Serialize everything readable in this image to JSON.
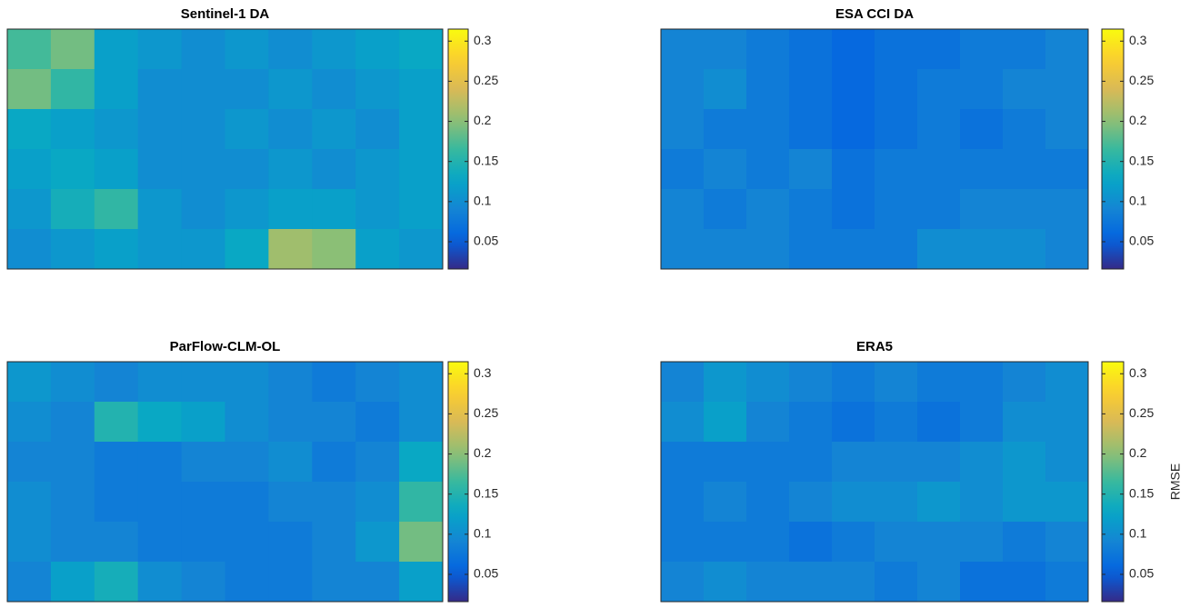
{
  "chart_data": [
    {
      "type": "heatmap",
      "title": "Sentinel-1 DA",
      "colormap": "parula",
      "clim": [
        0.016,
        0.315
      ],
      "cticks": [
        0.05,
        0.1,
        0.15,
        0.2,
        0.25,
        0.3
      ],
      "values": [
        [
          0.17,
          0.19,
          0.12,
          0.11,
          0.1,
          0.11,
          0.1,
          0.11,
          0.12,
          0.13
        ],
        [
          0.19,
          0.16,
          0.12,
          0.1,
          0.1,
          0.1,
          0.11,
          0.1,
          0.11,
          0.12
        ],
        [
          0.13,
          0.12,
          0.11,
          0.1,
          0.1,
          0.11,
          0.1,
          0.11,
          0.1,
          0.12
        ],
        [
          0.12,
          0.13,
          0.12,
          0.1,
          0.1,
          0.1,
          0.11,
          0.1,
          0.11,
          0.12
        ],
        [
          0.11,
          0.14,
          0.16,
          0.11,
          0.1,
          0.11,
          0.12,
          0.12,
          0.11,
          0.12
        ],
        [
          0.1,
          0.11,
          0.12,
          0.11,
          0.11,
          0.13,
          0.21,
          0.2,
          0.12,
          0.11
        ]
      ]
    },
    {
      "type": "heatmap",
      "title": "ESA CCI DA",
      "colormap": "parula",
      "clim": [
        0.016,
        0.315
      ],
      "cticks": [
        0.05,
        0.1,
        0.15,
        0.2,
        0.25,
        0.3
      ],
      "values": [
        [
          0.09,
          0.09,
          0.08,
          0.07,
          0.06,
          0.07,
          0.07,
          0.08,
          0.08,
          0.09
        ],
        [
          0.09,
          0.1,
          0.08,
          0.07,
          0.06,
          0.07,
          0.08,
          0.08,
          0.09,
          0.09
        ],
        [
          0.09,
          0.08,
          0.08,
          0.07,
          0.06,
          0.07,
          0.08,
          0.07,
          0.08,
          0.09
        ],
        [
          0.08,
          0.09,
          0.08,
          0.09,
          0.07,
          0.08,
          0.08,
          0.08,
          0.08,
          0.08
        ],
        [
          0.09,
          0.08,
          0.09,
          0.08,
          0.07,
          0.08,
          0.08,
          0.09,
          0.09,
          0.09
        ],
        [
          0.09,
          0.09,
          0.09,
          0.08,
          0.08,
          0.08,
          0.1,
          0.1,
          0.1,
          0.09
        ]
      ]
    },
    {
      "type": "heatmap",
      "title": "ParFlow-CLM-OL",
      "colormap": "parula",
      "clim": [
        0.016,
        0.315
      ],
      "cticks": [
        0.05,
        0.1,
        0.15,
        0.2,
        0.25,
        0.3
      ],
      "values": [
        [
          0.11,
          0.1,
          0.09,
          0.1,
          0.1,
          0.1,
          0.09,
          0.08,
          0.09,
          0.1
        ],
        [
          0.1,
          0.09,
          0.15,
          0.13,
          0.12,
          0.1,
          0.09,
          0.09,
          0.08,
          0.1
        ],
        [
          0.09,
          0.09,
          0.08,
          0.08,
          0.09,
          0.09,
          0.1,
          0.08,
          0.09,
          0.13
        ],
        [
          0.1,
          0.09,
          0.08,
          0.08,
          0.08,
          0.08,
          0.09,
          0.09,
          0.1,
          0.16
        ],
        [
          0.1,
          0.09,
          0.09,
          0.08,
          0.08,
          0.08,
          0.08,
          0.09,
          0.11,
          0.19
        ],
        [
          0.09,
          0.12,
          0.14,
          0.1,
          0.09,
          0.08,
          0.08,
          0.09,
          0.09,
          0.12
        ]
      ]
    },
    {
      "type": "heatmap",
      "title": "ERA5",
      "colormap": "parula",
      "colorbar_label": "RMSE",
      "clim": [
        0.016,
        0.315
      ],
      "cticks": [
        0.05,
        0.1,
        0.15,
        0.2,
        0.25,
        0.3
      ],
      "values": [
        [
          0.09,
          0.11,
          0.1,
          0.09,
          0.08,
          0.09,
          0.08,
          0.08,
          0.09,
          0.1
        ],
        [
          0.1,
          0.12,
          0.09,
          0.08,
          0.07,
          0.08,
          0.07,
          0.08,
          0.1,
          0.1
        ],
        [
          0.08,
          0.08,
          0.08,
          0.08,
          0.09,
          0.09,
          0.09,
          0.1,
          0.11,
          0.1
        ],
        [
          0.08,
          0.09,
          0.08,
          0.09,
          0.1,
          0.1,
          0.11,
          0.1,
          0.11,
          0.11
        ],
        [
          0.08,
          0.08,
          0.08,
          0.07,
          0.08,
          0.09,
          0.09,
          0.09,
          0.08,
          0.09
        ],
        [
          0.09,
          0.1,
          0.09,
          0.09,
          0.09,
          0.08,
          0.09,
          0.07,
          0.07,
          0.08
        ]
      ]
    }
  ]
}
